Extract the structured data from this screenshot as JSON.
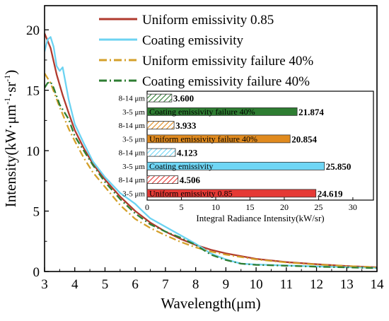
{
  "chart_data": [
    {
      "type": "line",
      "xlabel": "Wavelength(μm)",
      "ylabel_parts": [
        "Intensity(kW·μm",
        "-1",
        "·sr",
        "-1",
        ")"
      ],
      "xlim": [
        3,
        14
      ],
      "ylim": [
        0,
        22
      ],
      "xticks": [
        3,
        4,
        5,
        6,
        7,
        8,
        9,
        10,
        11,
        12,
        13,
        14
      ],
      "yticks": [
        0,
        5,
        10,
        15,
        20
      ],
      "legend_position": "top-right",
      "series": [
        {
          "name": "Uniform emissivity 0.85",
          "color": "#b03a2e",
          "dash": "solid",
          "points": [
            [
              3.0,
              19.7
            ],
            [
              3.2,
              18.5
            ],
            [
              3.4,
              16.3
            ],
            [
              3.6,
              14.6
            ],
            [
              3.8,
              13.1
            ],
            [
              4.0,
              11.7
            ],
            [
              4.3,
              10.2
            ],
            [
              4.6,
              8.9
            ],
            [
              5.0,
              7.6
            ],
            [
              5.5,
              6.2
            ],
            [
              6.0,
              5.0
            ],
            [
              6.5,
              4.05
            ],
            [
              7.0,
              3.3
            ],
            [
              7.5,
              2.7
            ],
            [
              8.0,
              2.2
            ],
            [
              8.5,
              1.8
            ],
            [
              9.0,
              1.5
            ],
            [
              10.0,
              1.05
            ],
            [
              11.0,
              0.78
            ],
            [
              12.0,
              0.6
            ],
            [
              13.0,
              0.45
            ],
            [
              14.0,
              0.35
            ]
          ]
        },
        {
          "name": "Coating emissivity",
          "color": "#6cd3f2",
          "dash": "solid",
          "points": [
            [
              3.0,
              18.2
            ],
            [
              3.1,
              19.2
            ],
            [
              3.2,
              19.4
            ],
            [
              3.3,
              18.6
            ],
            [
              3.4,
              17.0
            ],
            [
              3.5,
              16.6
            ],
            [
              3.6,
              16.9
            ],
            [
              3.8,
              14.2
            ],
            [
              4.0,
              12.2
            ],
            [
              4.3,
              10.6
            ],
            [
              4.6,
              9.1
            ],
            [
              5.0,
              7.8
            ],
            [
              5.5,
              6.5
            ],
            [
              6.0,
              5.6
            ],
            [
              6.2,
              5.1
            ],
            [
              6.5,
              4.4
            ],
            [
              7.0,
              3.7
            ],
            [
              7.5,
              3.0
            ],
            [
              8.0,
              2.3
            ],
            [
              8.5,
              1.5
            ],
            [
              9.0,
              1.0
            ],
            [
              9.5,
              0.65
            ],
            [
              10.0,
              0.58
            ],
            [
              11.0,
              0.5
            ],
            [
              12.0,
              0.42
            ],
            [
              13.0,
              0.36
            ],
            [
              14.0,
              0.3
            ]
          ]
        },
        {
          "name": "Uniform emissivity failure 40%",
          "color": "#d4a02a",
          "dash": "dashdot",
          "points": [
            [
              3.0,
              16.4
            ],
            [
              3.2,
              15.6
            ],
            [
              3.5,
              13.6
            ],
            [
              3.8,
              11.8
            ],
            [
              4.0,
              10.8
            ],
            [
              4.3,
              9.4
            ],
            [
              4.6,
              8.2
            ],
            [
              5.0,
              7.0
            ],
            [
              5.5,
              5.5
            ],
            [
              6.0,
              4.35
            ],
            [
              6.5,
              3.6
            ],
            [
              7.0,
              3.0
            ],
            [
              7.5,
              2.45
            ],
            [
              8.0,
              2.0
            ],
            [
              8.5,
              1.65
            ],
            [
              9.0,
              1.4
            ],
            [
              10.0,
              1.0
            ],
            [
              11.0,
              0.75
            ],
            [
              12.0,
              0.58
            ],
            [
              13.0,
              0.45
            ],
            [
              14.0,
              0.35
            ]
          ]
        },
        {
          "name": "Coating emissivity failure 40%",
          "color": "#2e7d32",
          "dash": "dashdot",
          "points": [
            [
              3.0,
              15.2
            ],
            [
              3.1,
              15.6
            ],
            [
              3.2,
              15.7
            ],
            [
              3.3,
              15.2
            ],
            [
              3.5,
              13.8
            ],
            [
              3.8,
              12.6
            ],
            [
              4.0,
              11.2
            ],
            [
              4.3,
              10.0
            ],
            [
              4.6,
              8.8
            ],
            [
              5.0,
              7.4
            ],
            [
              5.5,
              6.0
            ],
            [
              6.0,
              4.8
            ],
            [
              6.5,
              3.9
            ],
            [
              7.0,
              3.3
            ],
            [
              7.5,
              2.8
            ],
            [
              8.0,
              2.2
            ],
            [
              8.5,
              1.4
            ],
            [
              9.0,
              0.95
            ],
            [
              9.5,
              0.65
            ],
            [
              10.0,
              0.55
            ],
            [
              11.0,
              0.48
            ],
            [
              12.0,
              0.4
            ],
            [
              13.0,
              0.34
            ],
            [
              14.0,
              0.28
            ]
          ]
        }
      ]
    },
    {
      "type": "bar",
      "orientation": "horizontal",
      "xlabel": "Integral Radiance Intensity(kW/sr)",
      "xlim": [
        0,
        33
      ],
      "xticks": [
        0,
        5,
        10,
        15,
        20,
        25,
        30
      ],
      "bars": [
        {
          "category": "8-14 μm",
          "value": 3.6,
          "value_label": "3.600",
          "inner_label": "",
          "color": "#2e7d32",
          "hatched": true
        },
        {
          "category": "3-5 μm",
          "value": 21.874,
          "value_label": "21.874",
          "inner_label": "Coating emissivity failure 40%",
          "color": "#2e7d32",
          "hatched": false
        },
        {
          "category": "8-14 μm",
          "value": 3.933,
          "value_label": "3.933",
          "inner_label": "",
          "color": "#e08a1e",
          "hatched": true
        },
        {
          "category": "3-5 μm",
          "value": 20.854,
          "value_label": "20.854",
          "inner_label": "Uniform emissivity failure 40%",
          "color": "#e08a1e",
          "hatched": false
        },
        {
          "category": "8-14 μm",
          "value": 4.123,
          "value_label": "4.123",
          "inner_label": "",
          "color": "#6fd6f5",
          "hatched": true
        },
        {
          "category": "3-5 μm",
          "value": 25.85,
          "value_label": "25.850",
          "inner_label": "Coating emissivity",
          "color": "#6fd6f5",
          "hatched": false
        },
        {
          "category": "8-14 μm",
          "value": 4.506,
          "value_label": "4.506",
          "inner_label": "",
          "color": "#e53935",
          "hatched": true
        },
        {
          "category": "3-5 μm",
          "value": 24.619,
          "value_label": "24.619",
          "inner_label": "Uniform emissivity 0.85",
          "color": "#e53935",
          "hatched": false
        }
      ]
    }
  ]
}
